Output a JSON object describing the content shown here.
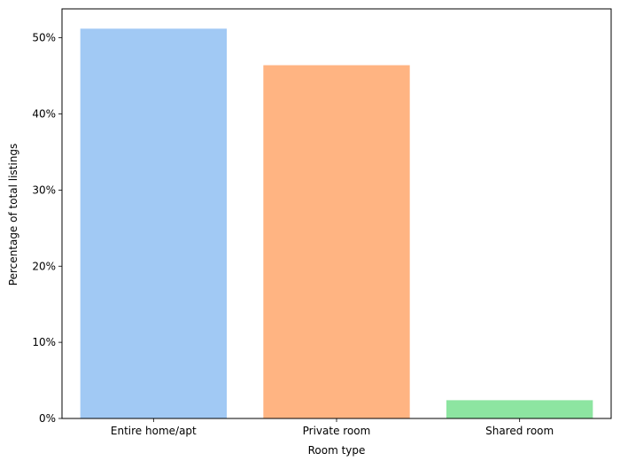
{
  "chart_data": {
    "type": "bar",
    "title": "",
    "xlabel": "Room type",
    "ylabel": "Percentage of total listings",
    "categories": [
      "Entire home/apt",
      "Private room",
      "Shared room"
    ],
    "values": [
      51.2,
      46.4,
      2.4
    ],
    "colors": [
      "#a1c9f4",
      "#ffb482",
      "#8de5a1"
    ],
    "ylim": [
      0,
      53.8
    ],
    "yticks": [
      0,
      10,
      20,
      30,
      40,
      50
    ],
    "ytick_labels": [
      "0%",
      "10%",
      "20%",
      "30%",
      "40%",
      "50%"
    ],
    "grid": false,
    "legend": "none"
  }
}
